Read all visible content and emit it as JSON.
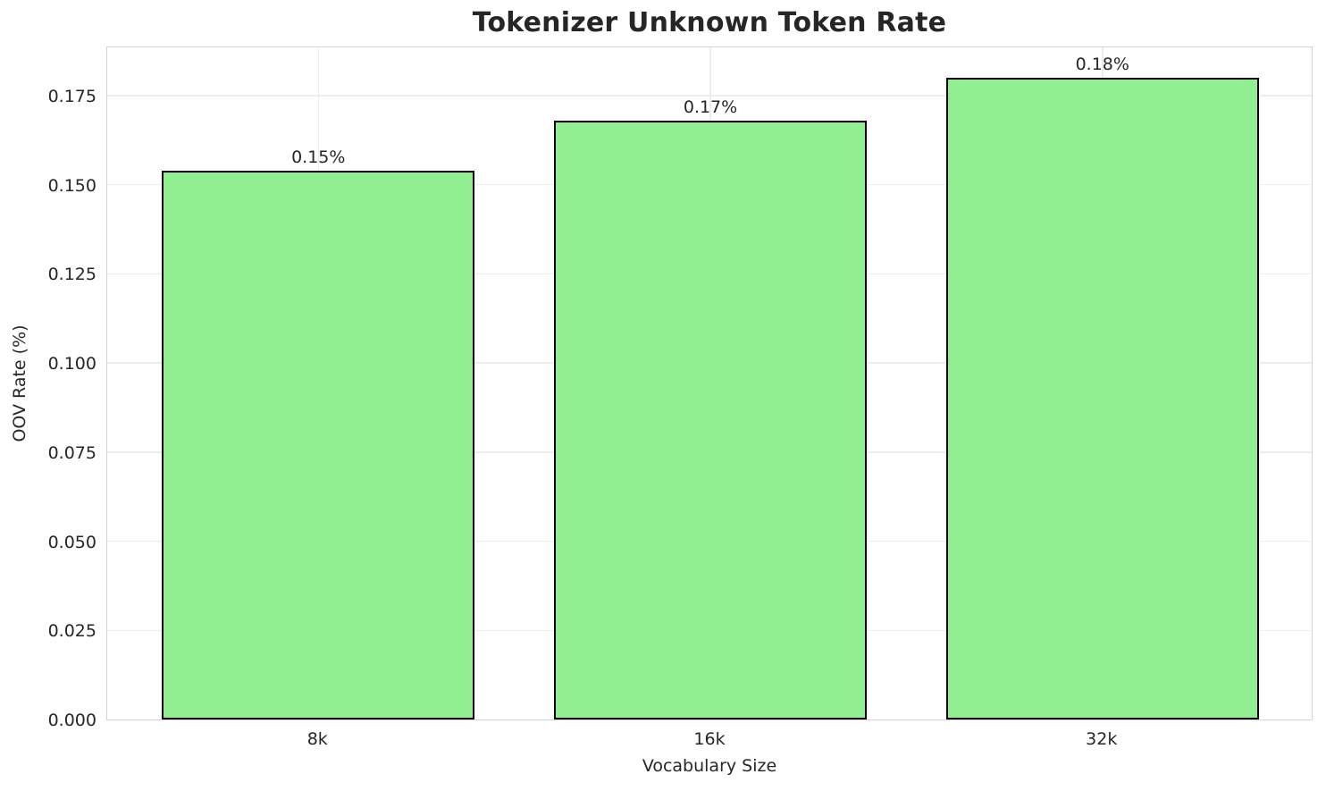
{
  "chart_data": {
    "type": "bar",
    "title": "Tokenizer Unknown Token Rate",
    "xlabel": "Vocabulary Size",
    "ylabel": "OOV Rate (%)",
    "categories": [
      "8k",
      "16k",
      "32k"
    ],
    "values": [
      0.154,
      0.168,
      0.18
    ],
    "bar_value_labels": [
      "0.15%",
      "0.17%",
      "0.18%"
    ],
    "ylim": [
      0,
      0.189
    ],
    "ytick_labels": [
      "0.000",
      "0.025",
      "0.050",
      "0.075",
      "0.100",
      "0.125",
      "0.150",
      "0.175"
    ],
    "ytick_values": [
      0.0,
      0.025,
      0.05,
      0.075,
      0.1,
      0.125,
      0.15,
      0.175
    ],
    "grid": true,
    "legend": "none",
    "colors": {
      "bar_fill": "#90EE90",
      "bar_edge": "#000000",
      "gridline": "#ededed",
      "spine": "#d4d4d4",
      "text": "#262626",
      "background": "#ffffff"
    }
  }
}
